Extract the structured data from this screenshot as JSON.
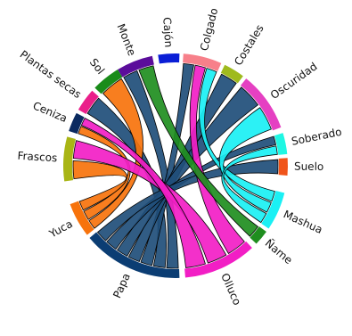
{
  "diagram": {
    "type": "chord",
    "groups": [
      {
        "id": "monte",
        "label": "Monte",
        "color": "#5b0d9b"
      },
      {
        "id": "cajon",
        "label": "Cajón",
        "color": "#0a1ed6"
      },
      {
        "id": "colgado",
        "label": "Colgado",
        "color": "#f7808a"
      },
      {
        "id": "costales",
        "label": "Costales",
        "color": "#9fba1e"
      },
      {
        "id": "oscuridad",
        "label": "Oscuridad",
        "color": "#e540c2"
      },
      {
        "id": "soberado",
        "label": "Soberado",
        "color": "#1ff7e3"
      },
      {
        "id": "suelo",
        "label": "Suelo",
        "color": "#f0541a"
      },
      {
        "id": "mashua",
        "label": "Mashua",
        "color": "#1af0f4"
      },
      {
        "id": "name",
        "label": "Ñame",
        "color": "#1f8e1f"
      },
      {
        "id": "olluco",
        "label": "Olluco",
        "color": "#f21ec5"
      },
      {
        "id": "papa",
        "label": "Papa",
        "color": "#0b3d73"
      },
      {
        "id": "yuca",
        "label": "Yuca",
        "color": "#f7730c"
      },
      {
        "id": "frascos",
        "label": "Frascos",
        "color": "#a9b515"
      },
      {
        "id": "ceniza",
        "label": "Ceniza",
        "color": "#0b2a60"
      },
      {
        "id": "plantas_secas",
        "label": "Plantas secas",
        "color": "#ea1f8a"
      },
      {
        "id": "sol",
        "label": "Sol",
        "color": "#1a8c1a"
      }
    ],
    "ribbons": [
      {
        "source": "papa",
        "target": "monte",
        "color": "#1f4e79"
      },
      {
        "source": "papa",
        "target": "plantas_secas",
        "color": "#1f4e79"
      },
      {
        "source": "papa",
        "target": "colgado",
        "color": "#1f4e79"
      },
      {
        "source": "papa",
        "target": "costales",
        "color": "#1f4e79"
      },
      {
        "source": "papa",
        "target": "oscuridad",
        "color": "#1f4e79"
      },
      {
        "source": "papa",
        "target": "soberado",
        "color": "#1f4e79"
      },
      {
        "source": "papa",
        "target": "suelo",
        "color": "#1f4e79"
      },
      {
        "source": "yuca",
        "target": "sol",
        "color": "#f7730c"
      },
      {
        "source": "yuca",
        "target": "ceniza",
        "color": "#f7730c"
      },
      {
        "source": "yuca",
        "target": "frascos",
        "color": "#f7730c"
      },
      {
        "source": "olluco",
        "target": "colgado",
        "color": "#f21ec5"
      },
      {
        "source": "olluco",
        "target": "frascos",
        "color": "#f21ec5"
      },
      {
        "source": "olluco",
        "target": "ceniza",
        "color": "#f21ec5"
      },
      {
        "source": "mashua",
        "target": "colgado",
        "color": "#1af0f4"
      },
      {
        "source": "mashua",
        "target": "oscuridad",
        "color": "#1af0f4"
      },
      {
        "source": "mashua",
        "target": "soberado",
        "color": "#1af0f4"
      },
      {
        "source": "name",
        "target": "monte",
        "color": "#1f8e1f"
      }
    ]
  }
}
